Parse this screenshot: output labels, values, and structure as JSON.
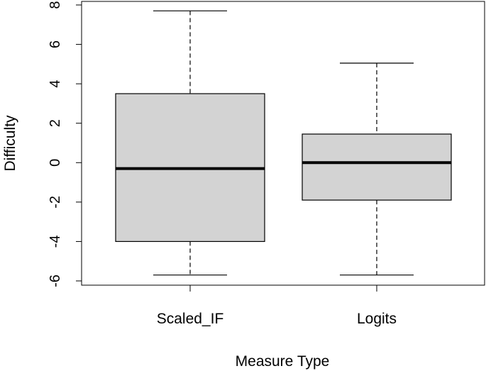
{
  "chart_data": {
    "type": "boxplot",
    "xlabel": "Measure Type",
    "ylabel": "Difficulty",
    "ylim": [
      -6.3,
      8.0
    ],
    "yticks": [
      -6,
      -4,
      -2,
      0,
      2,
      4,
      6,
      8
    ],
    "ytick_labels": [
      "-6",
      "-4",
      "-2",
      "0",
      "2",
      "4",
      "6",
      "8"
    ],
    "categories": [
      "Scaled_IF",
      "Logits"
    ],
    "boxes": [
      {
        "category": "Scaled_IF",
        "min": -5.7,
        "q1": -4.0,
        "median": -0.3,
        "q3": 3.5,
        "max": 7.7
      },
      {
        "category": "Logits",
        "min": -5.7,
        "q1": -1.9,
        "median": 0.0,
        "q3": 1.45,
        "max": 5.05
      }
    ],
    "box_fill": "#d3d3d3",
    "line_color": "#000000",
    "grid": false,
    "legend": "none"
  }
}
